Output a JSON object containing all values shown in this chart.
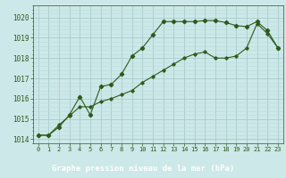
{
  "title": "Graphe pression niveau de la mer (hPa)",
  "bg_color": "#cce8e8",
  "grid_color_major": "#aacccc",
  "grid_color_minor": "#bbdddd",
  "line_color": "#2d5a1b",
  "xlim": [
    -0.5,
    23.5
  ],
  "ylim": [
    1013.8,
    1020.6
  ],
  "yticks": [
    1014,
    1015,
    1016,
    1017,
    1018,
    1019,
    1020
  ],
  "xticks": [
    0,
    1,
    2,
    3,
    4,
    5,
    6,
    7,
    8,
    9,
    10,
    11,
    12,
    13,
    14,
    15,
    16,
    17,
    18,
    19,
    20,
    21,
    22,
    23
  ],
  "series1_x": [
    0,
    1,
    2,
    3,
    4,
    5,
    6,
    7,
    8,
    9,
    10,
    11,
    12,
    13,
    14,
    15,
    16,
    17,
    18,
    19,
    20,
    21,
    22,
    23
  ],
  "series1_y": [
    1014.2,
    1014.2,
    1014.6,
    1015.2,
    1016.1,
    1015.2,
    1016.6,
    1016.7,
    1017.2,
    1018.1,
    1018.5,
    1019.15,
    1019.8,
    1019.8,
    1019.8,
    1019.8,
    1019.85,
    1019.85,
    1019.75,
    1019.6,
    1019.55,
    1019.8,
    1019.35,
    1018.5
  ],
  "series2_x": [
    0,
    1,
    2,
    3,
    4,
    5,
    6,
    7,
    8,
    9,
    10,
    11,
    12,
    13,
    14,
    15,
    16,
    17,
    18,
    19,
    20,
    21,
    22,
    23
  ],
  "series2_y": [
    1014.2,
    1014.2,
    1014.7,
    1015.15,
    1015.6,
    1015.6,
    1015.85,
    1016.0,
    1016.2,
    1016.4,
    1016.8,
    1017.1,
    1017.4,
    1017.7,
    1018.0,
    1018.2,
    1018.3,
    1018.0,
    1018.0,
    1018.1,
    1018.5,
    1019.7,
    1019.2,
    1018.5
  ],
  "label_bg_color": "#2d5a1b",
  "label_text_color": "#ffffff",
  "tick_color": "#2d5a1b",
  "ylabel_fontsize": 5.5,
  "xlabel_fontsize": 5.5,
  "title_fontsize": 6.5
}
